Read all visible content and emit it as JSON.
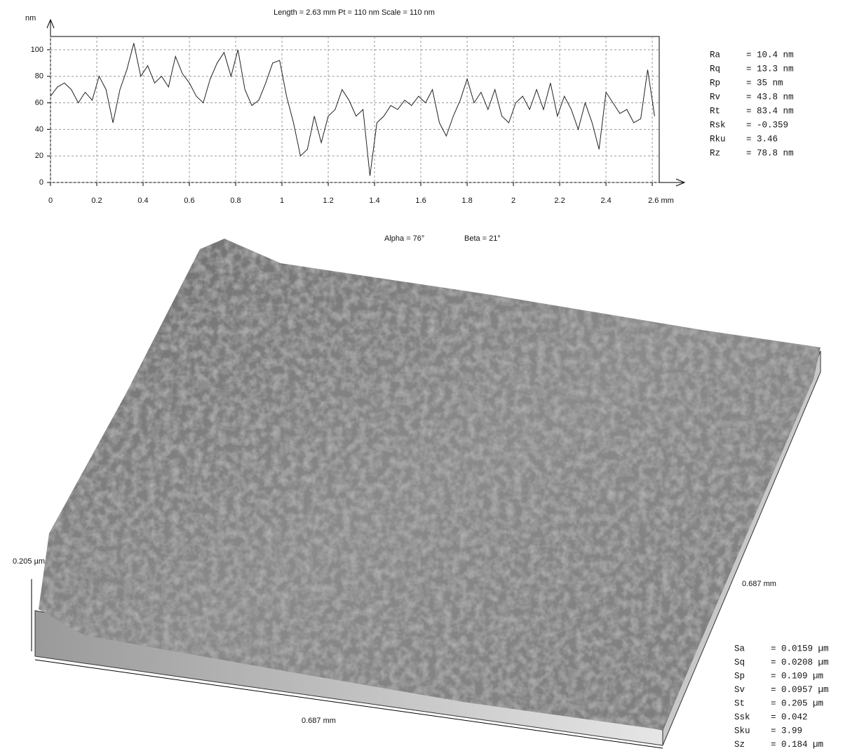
{
  "chart_data": {
    "type": "line",
    "title": "Length = 2.63 mm  Pt = 110 nm  Scale = 110 nm",
    "y_label": "nm",
    "x": [
      0,
      0.03,
      0.06,
      0.09,
      0.12,
      0.15,
      0.18,
      0.21,
      0.24,
      0.27,
      0.3,
      0.33,
      0.36,
      0.39,
      0.42,
      0.45,
      0.48,
      0.51,
      0.54,
      0.57,
      0.6,
      0.63,
      0.66,
      0.69,
      0.72,
      0.75,
      0.78,
      0.81,
      0.84,
      0.87,
      0.9,
      0.93,
      0.96,
      0.99,
      1.02,
      1.05,
      1.08,
      1.11,
      1.14,
      1.17,
      1.2,
      1.23,
      1.26,
      1.29,
      1.32,
      1.35,
      1.38,
      1.41,
      1.44,
      1.47,
      1.5,
      1.53,
      1.56,
      1.59,
      1.62,
      1.65,
      1.68,
      1.71,
      1.74,
      1.77,
      1.8,
      1.83,
      1.86,
      1.89,
      1.92,
      1.95,
      1.98,
      2.01,
      2.04,
      2.07,
      2.1,
      2.13,
      2.16,
      2.19,
      2.22,
      2.25,
      2.28,
      2.31,
      2.34,
      2.37,
      2.4,
      2.43,
      2.46,
      2.49,
      2.52,
      2.55,
      2.58,
      2.61
    ],
    "values": [
      65,
      72,
      75,
      70,
      60,
      68,
      62,
      80,
      70,
      45,
      70,
      85,
      105,
      80,
      88,
      75,
      80,
      72,
      95,
      82,
      75,
      65,
      60,
      78,
      90,
      98,
      80,
      100,
      70,
      58,
      62,
      75,
      90,
      92,
      65,
      45,
      20,
      25,
      50,
      30,
      50,
      55,
      70,
      62,
      50,
      55,
      5,
      45,
      50,
      58,
      55,
      62,
      58,
      65,
      60,
      70,
      45,
      35,
      50,
      62,
      78,
      60,
      68,
      55,
      70,
      50,
      45,
      60,
      65,
      55,
      70,
      55,
      75,
      50,
      65,
      55,
      40,
      60,
      45,
      25,
      68,
      60,
      52,
      55,
      45,
      48,
      85,
      50
    ],
    "color": "#222222",
    "xlim": [
      0,
      2.63
    ],
    "ylim": [
      0,
      110
    ],
    "xticks": [
      0,
      0.2,
      0.4,
      0.6,
      0.8,
      1,
      1.2,
      1.4,
      1.6,
      1.8,
      2,
      2.2,
      2.4,
      {
        "value": 2.6,
        "label": "2.6 mm"
      }
    ],
    "yticks": [
      0,
      20,
      40,
      60,
      80,
      100
    ],
    "grid": true
  },
  "roughness_params": [
    {
      "name": "Ra",
      "value": "= 10.4 nm"
    },
    {
      "name": "Rq",
      "value": "= 13.3 nm"
    },
    {
      "name": "Rp",
      "value": "= 35 nm"
    },
    {
      "name": "Rv",
      "value": "= 43.8 nm"
    },
    {
      "name": "Rt",
      "value": "= 83.4 nm"
    },
    {
      "name": "Rsk",
      "value": "= -0.359"
    },
    {
      "name": "Rku",
      "value": "= 3.46"
    },
    {
      "name": "Rz",
      "value": "= 78.8 nm"
    }
  ],
  "surface_view": {
    "alpha": "Alpha = 76°",
    "beta": "Beta = 21°",
    "z_label": "0.205 µm",
    "x_label": "0.687 mm",
    "y_label": "0.687 mm",
    "params": [
      {
        "name": "Sa",
        "value": "= 0.0159 µm"
      },
      {
        "name": "Sq",
        "value": "= 0.0208 µm"
      },
      {
        "name": "Sp",
        "value": "= 0.109 µm"
      },
      {
        "name": "Sv",
        "value": "= 0.0957 µm"
      },
      {
        "name": "St",
        "value": "= 0.205 µm"
      },
      {
        "name": "Ssk",
        "value": "= 0.042"
      },
      {
        "name": "Sku",
        "value": "= 3.99"
      },
      {
        "name": "Sz",
        "value": "= 0.184 µm"
      }
    ]
  }
}
